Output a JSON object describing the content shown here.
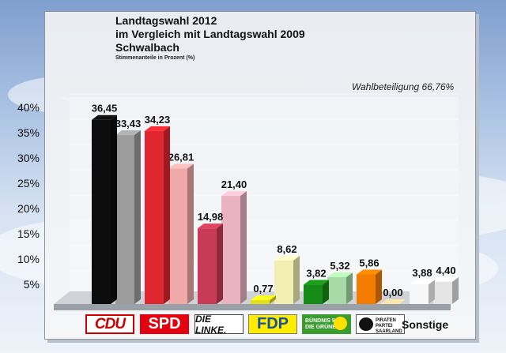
{
  "chart_data": {
    "type": "bar",
    "title": "Landtagswahl 2012",
    "subtitle_lines": [
      "im Vergleich mit Landtagswahl 2009",
      "Schwalbach"
    ],
    "ylabel": "Stimmenanteile in Prozent (%)",
    "annotation": "Wahlbeteiligung 66,76%",
    "ylim": [
      0,
      40
    ],
    "yticks": [
      "40%",
      "35%",
      "30%",
      "25%",
      "20%",
      "15%",
      "10%",
      "5%"
    ],
    "ytick_values": [
      40,
      35,
      30,
      25,
      20,
      15,
      10,
      5
    ],
    "categories": [
      "CDU",
      "SPD",
      "DIE LINKE.",
      "FDP",
      "BÜNDNIS 90 DIE GRÜNEN",
      "PIRATEN",
      "Sonstige"
    ],
    "series": [
      {
        "name": "2012",
        "values": [
          36.45,
          34.23,
          14.98,
          0.77,
          3.82,
          5.86,
          3.88
        ],
        "labels": [
          "36,45",
          "34,23",
          "14,98",
          "0,77",
          "3,82",
          "5,86",
          "3,88"
        ]
      },
      {
        "name": "2009",
        "values": [
          33.43,
          26.81,
          21.4,
          8.62,
          5.32,
          0.0,
          4.4
        ],
        "labels": [
          "33,43",
          "26,81",
          "21,40",
          "8,62",
          "5,32",
          "0,00",
          "4,40"
        ]
      }
    ],
    "colors_2012": [
      "#0d0d0d",
      "#e0262e",
      "#c83a55",
      "#e3df1c",
      "#168a16",
      "#f47c00",
      "#f7f7f7"
    ],
    "colors_2009": [
      "#9c9c9c",
      "#f0a9a9",
      "#e9b3c1",
      "#f1f0b2",
      "#a7daa7",
      "#f6c895",
      "#e4e4e4"
    ],
    "grid": true,
    "legend": "bottom"
  },
  "legend": {
    "cdu": "CDU",
    "spd": "SPD",
    "linke": "DIE LINKE.",
    "fdp": "FDP",
    "gruene_1": "BÜNDNIS 90",
    "gruene_2": "DIE GRÜNEN",
    "piraten_1": "PIRATEN",
    "piraten_2": "PARTEI",
    "piraten_3": "SAARLAND",
    "sonstige": "Sonstige"
  }
}
